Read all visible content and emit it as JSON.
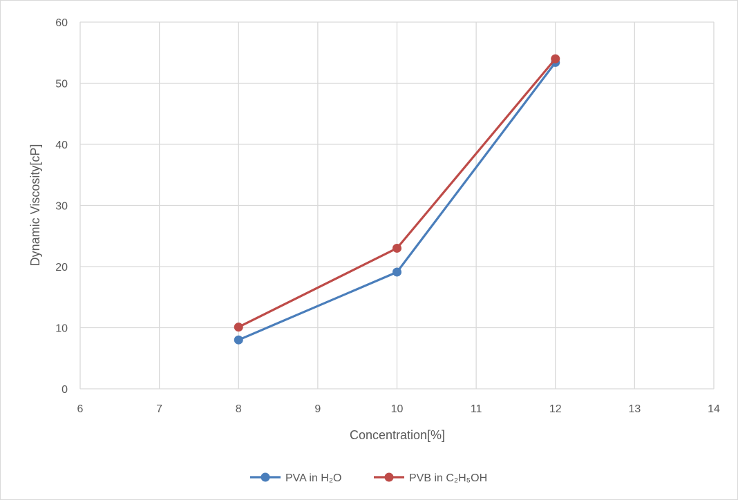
{
  "chart_data": {
    "type": "line",
    "title": "",
    "xlabel": "Concentration[%]",
    "ylabel": "Dynamic Viscosity[cP]",
    "xlim": [
      6,
      14
    ],
    "ylim": [
      0,
      60
    ],
    "xticks": [
      6,
      7,
      8,
      9,
      10,
      11,
      12,
      13,
      14
    ],
    "yticks": [
      0,
      10,
      20,
      30,
      40,
      50,
      60
    ],
    "grid": true,
    "legend_position": "bottom",
    "series": [
      {
        "name": "PVA in H₂O",
        "color": "#4a7ebb",
        "x": [
          8,
          10,
          12
        ],
        "y": [
          8.0,
          19.1,
          53.4
        ]
      },
      {
        "name": "PVB in C₂H₅OH",
        "color": "#be4b48",
        "x": [
          8,
          10,
          12
        ],
        "y": [
          10.1,
          23.0,
          54.0
        ]
      }
    ]
  }
}
